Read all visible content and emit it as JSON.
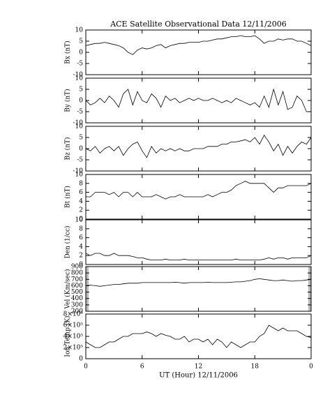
{
  "chart_data": [
    {
      "type": "line",
      "title": "ACE Satellite Observational Data   12/11/2006",
      "ylabel": "Bx (nT)",
      "color": "#000000",
      "x": [
        0,
        0.5,
        1,
        1.5,
        2,
        2.5,
        3,
        3.5,
        4,
        4.5,
        5,
        5.5,
        6,
        6.5,
        7,
        7.5,
        8,
        8.5,
        9,
        9.5,
        10,
        10.5,
        11,
        11.5,
        12,
        12.5,
        13,
        13.5,
        14,
        14.5,
        15,
        15.5,
        16,
        16.5,
        17,
        17.5,
        18,
        18.5,
        19,
        19.5,
        20,
        20.5,
        21,
        21.5,
        22,
        22.5,
        23,
        23.5,
        24
      ],
      "values": [
        3,
        3.5,
        4,
        4,
        4.5,
        4,
        3.5,
        3,
        2,
        0,
        -1,
        1,
        2,
        1.5,
        2,
        3,
        3.5,
        2,
        3,
        3.5,
        4,
        4,
        4.5,
        4.5,
        4.5,
        5,
        5,
        5.5,
        6,
        6,
        6.5,
        7,
        7,
        7.5,
        7,
        7,
        7.5,
        6,
        4,
        5,
        5,
        6,
        5.5,
        6,
        6,
        5,
        5,
        4,
        3
      ],
      "xlim": [
        0,
        24
      ],
      "ylim": [
        -10,
        10
      ],
      "yticks": [
        -10,
        -5,
        0,
        5,
        10
      ]
    },
    {
      "type": "line",
      "ylabel": "By (nT)",
      "color": "#000000",
      "x": [
        0,
        0.5,
        1,
        1.5,
        2,
        2.5,
        3,
        3.5,
        4,
        4.5,
        5,
        5.5,
        6,
        6.5,
        7,
        7.5,
        8,
        8.5,
        9,
        9.5,
        10,
        10.5,
        11,
        11.5,
        12,
        12.5,
        13,
        13.5,
        14,
        14.5,
        15,
        15.5,
        16,
        16.5,
        17,
        17.5,
        18,
        18.5,
        19,
        19.5,
        20,
        20.5,
        21,
        21.5,
        22,
        22.5,
        23,
        23.5,
        24
      ],
      "values": [
        0,
        -2,
        -1,
        1,
        -1,
        2,
        0,
        -3,
        3,
        5,
        -2,
        4,
        0,
        -1,
        3,
        1,
        -3,
        2,
        0,
        1,
        -1,
        0,
        1,
        0,
        1,
        0,
        0,
        1,
        0,
        -1,
        0,
        -1,
        1,
        0,
        -1,
        -2,
        -1,
        -3,
        2,
        -3,
        5,
        -2,
        4,
        -4,
        -3,
        2,
        0,
        -5,
        -5
      ],
      "xlim": [
        0,
        24
      ],
      "ylim": [
        -10,
        10
      ],
      "yticks": [
        -10,
        -5,
        0,
        5,
        10
      ]
    },
    {
      "type": "line",
      "ylabel": "Bz (nT)",
      "color": "#000000",
      "x": [
        0,
        0.5,
        1,
        1.5,
        2,
        2.5,
        3,
        3.5,
        4,
        4.5,
        5,
        5.5,
        6,
        6.5,
        7,
        7.5,
        8,
        8.5,
        9,
        9.5,
        10,
        10.5,
        11,
        11.5,
        12,
        12.5,
        13,
        13.5,
        14,
        14.5,
        15,
        15.5,
        16,
        16.5,
        17,
        17.5,
        18,
        18.5,
        19,
        19.5,
        20,
        20.5,
        21,
        21.5,
        22,
        22.5,
        23,
        23.5,
        24
      ],
      "values": [
        0,
        -1,
        1,
        -2,
        0,
        1,
        -1,
        1,
        -3,
        0,
        2,
        3,
        -1,
        -4,
        1,
        -2,
        0,
        -1,
        0,
        -1,
        0,
        -1,
        -1,
        0,
        0,
        0,
        1,
        1,
        1,
        2,
        2,
        3,
        3,
        3.5,
        4,
        3,
        5,
        2,
        6,
        3,
        -1,
        2,
        -3,
        1,
        -2,
        1,
        3,
        2,
        5
      ],
      "xlim": [
        0,
        24
      ],
      "ylim": [
        -10,
        10
      ],
      "yticks": [
        -10,
        -5,
        0,
        5,
        10
      ]
    },
    {
      "type": "line",
      "ylabel": "Bt (nT)",
      "color": "#000000",
      "x": [
        0,
        0.5,
        1,
        1.5,
        2,
        2.5,
        3,
        3.5,
        4,
        4.5,
        5,
        5.5,
        6,
        6.5,
        7,
        7.5,
        8,
        8.5,
        9,
        9.5,
        10,
        10.5,
        11,
        11.5,
        12,
        12.5,
        13,
        13.5,
        14,
        14.5,
        15,
        15.5,
        16,
        16.5,
        17,
        17.5,
        18,
        18.5,
        19,
        19.5,
        20,
        20.5,
        21,
        21.5,
        22,
        22.5,
        23,
        23.5,
        24
      ],
      "values": [
        5,
        5,
        6,
        6,
        6,
        5.5,
        6,
        5,
        6,
        6,
        5,
        6,
        5,
        5,
        5,
        5.5,
        5,
        4.5,
        5,
        5,
        5.5,
        5,
        5,
        5,
        5,
        5,
        5.5,
        5,
        5.5,
        6,
        6,
        6.5,
        7.5,
        8,
        8.5,
        8,
        8,
        8,
        8,
        7,
        6,
        7,
        7,
        7.5,
        7.5,
        7.5,
        7.5,
        7.5,
        8
      ],
      "xlim": [
        0,
        24
      ],
      "ylim": [
        0,
        10
      ],
      "yticks": [
        0,
        2,
        4,
        6,
        8,
        10
      ]
    },
    {
      "type": "line",
      "ylabel": "Den (1/cc)",
      "color": "#000000",
      "x": [
        0,
        0.5,
        1,
        1.5,
        2,
        2.5,
        3,
        3.5,
        4,
        4.5,
        5,
        5.5,
        6,
        6.5,
        7,
        7.5,
        8,
        8.5,
        9,
        9.5,
        10,
        10.5,
        11,
        11.5,
        12,
        12.5,
        13,
        13.5,
        14,
        14.5,
        15,
        15.5,
        16,
        16.5,
        17,
        17.5,
        18,
        18.5,
        19,
        19.5,
        20,
        20.5,
        21,
        21.5,
        22,
        22.5,
        23,
        23.5,
        24
      ],
      "values": [
        2.5,
        2,
        2.5,
        2.5,
        2,
        2,
        2.5,
        2,
        2,
        2,
        1.8,
        1.5,
        1.5,
        1.2,
        1,
        1,
        1,
        1.2,
        1,
        1,
        1,
        1.2,
        1,
        1,
        1,
        1,
        1,
        1,
        1,
        1,
        1,
        1,
        1.2,
        1,
        1,
        1,
        1,
        1,
        1.2,
        1.5,
        1.2,
        1.5,
        1.5,
        1.2,
        1.5,
        1.5,
        1.5,
        1.5,
        2
      ],
      "xlim": [
        0,
        24
      ],
      "ylim": [
        0,
        10
      ],
      "yticks": [
        0,
        2,
        4,
        6,
        8,
        10
      ]
    },
    {
      "type": "line",
      "ylabel": "Vel (Km/sec)",
      "color": "#000000",
      "x": [
        0,
        0.5,
        1,
        1.5,
        2,
        2.5,
        3,
        3.5,
        4,
        4.5,
        5,
        5.5,
        6,
        6.5,
        7,
        7.5,
        8,
        8.5,
        9,
        9.5,
        10,
        10.5,
        11,
        11.5,
        12,
        12.5,
        13,
        13.5,
        14,
        14.5,
        15,
        15.5,
        16,
        16.5,
        17,
        17.5,
        18,
        18.5,
        19,
        19.5,
        20,
        20.5,
        21,
        21.5,
        22,
        22.5,
        23,
        23.5,
        24
      ],
      "values": [
        600,
        610,
        600,
        590,
        600,
        610,
        620,
        620,
        630,
        640,
        640,
        640,
        650,
        650,
        650,
        650,
        650,
        650,
        650,
        655,
        650,
        640,
        650,
        650,
        650,
        650,
        655,
        650,
        650,
        650,
        650,
        655,
        660,
        660,
        670,
        680,
        700,
        710,
        700,
        690,
        680,
        680,
        690,
        680,
        670,
        680,
        680,
        690,
        700
      ],
      "xlim": [
        0,
        24
      ],
      "ylim": [
        200,
        900
      ],
      "yticks": [
        200,
        300,
        400,
        500,
        600,
        700,
        800,
        900
      ]
    },
    {
      "type": "line",
      "ylabel": "Ion Temp (K)",
      "xlabel": "UT (Hour)   12/11/2006",
      "color": "#000000",
      "x": [
        0,
        0.5,
        1,
        1.5,
        2,
        2.5,
        3,
        3.5,
        4,
        4.5,
        5,
        5.5,
        6,
        6.5,
        7,
        7.5,
        8,
        8.5,
        9,
        9.5,
        10,
        10.5,
        11,
        11.5,
        12,
        12.5,
        13,
        13.5,
        14,
        14.5,
        15,
        15.5,
        16,
        16.5,
        17,
        17.5,
        18,
        18.5,
        19,
        19.5,
        20,
        20.5,
        21,
        21.5,
        22,
        22.5,
        23,
        23.5,
        24
      ],
      "values": [
        300000,
        250000,
        200000,
        200000,
        250000,
        300000,
        300000,
        350000,
        400000,
        400000,
        450000,
        450000,
        450000,
        480000,
        450000,
        400000,
        450000,
        420000,
        400000,
        350000,
        350000,
        400000,
        300000,
        350000,
        350000,
        300000,
        350000,
        250000,
        350000,
        300000,
        200000,
        300000,
        250000,
        200000,
        250000,
        300000,
        300000,
        400000,
        450000,
        600000,
        550000,
        500000,
        550000,
        500000,
        500000,
        500000,
        450000,
        400000,
        380000
      ],
      "xlim": [
        0,
        24
      ],
      "ylim": [
        0,
        800000
      ],
      "yticks": [
        0,
        {
          "value": 200000,
          "label": "2×10⁵"
        },
        {
          "value": 400000,
          "label": "4×10⁵"
        },
        {
          "value": 600000,
          "label": "6×10⁵"
        },
        {
          "value": 800000,
          "label": "8×10⁵"
        }
      ],
      "xticks": [
        0,
        6,
        12,
        18,
        {
          "value": 24,
          "label": "0"
        }
      ]
    }
  ]
}
